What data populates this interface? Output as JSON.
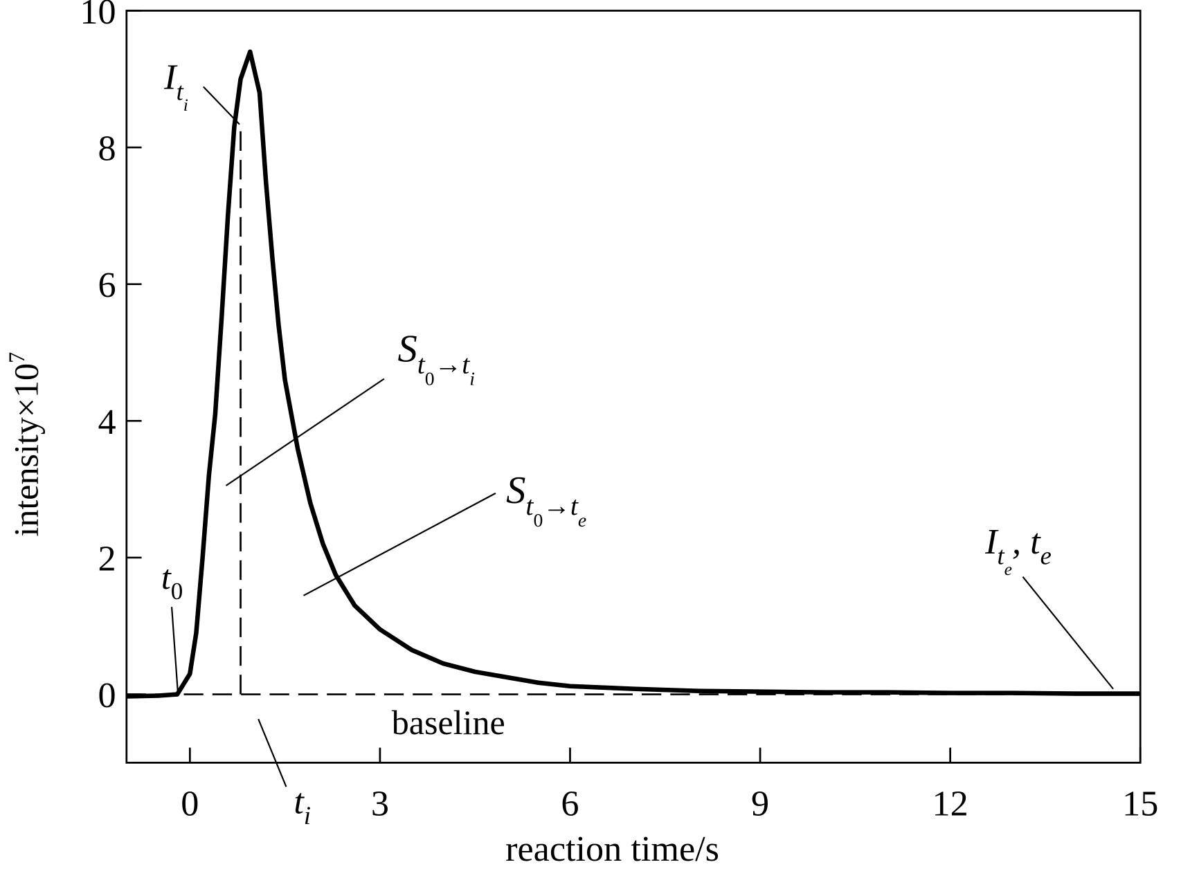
{
  "chart_data": {
    "type": "line",
    "xlabel": "reaction time/s",
    "ylabel": "intensity×10",
    "ylabel_exponent": "7",
    "xlim": [
      -1,
      15
    ],
    "ylim": [
      -1,
      10
    ],
    "xticks": [
      0,
      3,
      6,
      9,
      12,
      15
    ],
    "yticks": [
      0,
      2,
      4,
      6,
      8,
      10
    ],
    "x": [
      -1,
      -0.5,
      -0.2,
      0,
      0.1,
      0.2,
      0.3,
      0.4,
      0.5,
      0.6,
      0.7,
      0.8,
      0.95,
      1.1,
      1.2,
      1.3,
      1.4,
      1.5,
      1.7,
      1.9,
      2.1,
      2.3,
      2.6,
      3,
      3.5,
      4,
      4.5,
      5,
      5.5,
      6,
      7,
      8,
      9,
      10,
      11,
      12,
      13,
      14,
      15
    ],
    "series": [
      {
        "color": "#000000",
        "values": [
          -0.03,
          -0.02,
          0,
          0.3,
          0.9,
          2.0,
          3.2,
          4.1,
          5.5,
          7.0,
          8.3,
          9.0,
          9.4,
          8.8,
          7.5,
          6.4,
          5.4,
          4.6,
          3.6,
          2.8,
          2.2,
          1.75,
          1.3,
          0.95,
          0.65,
          0.45,
          0.33,
          0.25,
          0.17,
          0.12,
          0.08,
          0.05,
          0.04,
          0.03,
          0.03,
          0.02,
          0.02,
          0.01,
          0.01
        ]
      }
    ],
    "baseline_value": 0,
    "ti_line": {
      "x": 0.8,
      "y": 8.3
    },
    "annotations": [
      {
        "fragments": [
          {
            "text": "I",
            "level": 0
          },
          {
            "text": "t",
            "level": 1
          },
          {
            "text": "i",
            "level": 2
          }
        ]
      },
      {
        "fragments": [
          {
            "text": "t",
            "level": 0
          },
          {
            "text": "0",
            "level": 1
          }
        ]
      },
      {
        "fragments": [
          {
            "text": "S",
            "level": 0
          },
          {
            "text": "t",
            "level": 1
          },
          {
            "text": "0",
            "level": 2
          },
          {
            "text": "→",
            "level": 1
          },
          {
            "text": "t",
            "level": 1
          },
          {
            "text": "i",
            "level": 2
          }
        ]
      },
      {
        "fragments": [
          {
            "text": "S",
            "level": 0
          },
          {
            "text": "t",
            "level": 1
          },
          {
            "text": "0",
            "level": 2
          },
          {
            "text": "→",
            "level": 1
          },
          {
            "text": "t",
            "level": 1
          },
          {
            "text": "e",
            "level": 2
          }
        ]
      },
      {
        "fragments": [
          {
            "text": "I",
            "level": 0
          },
          {
            "text": "t",
            "level": 1
          },
          {
            "text": "e",
            "level": 2
          },
          {
            "text": ", t",
            "level": 0
          },
          {
            "text": "e",
            "level": 1
          }
        ]
      },
      {
        "fragments": [
          {
            "text": "t",
            "level": 0
          },
          {
            "text": "i",
            "level": 1
          }
        ]
      },
      {
        "fragments": [
          {
            "text": "baseline",
            "level": 0
          }
        ]
      }
    ]
  }
}
